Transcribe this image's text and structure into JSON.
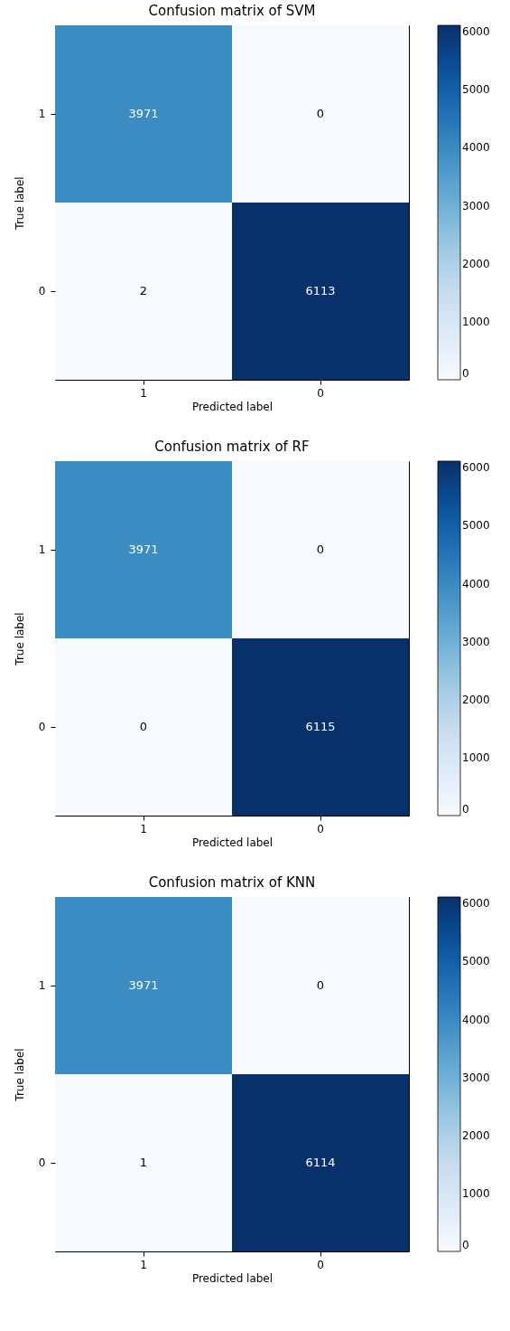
{
  "chart_data": [
    {
      "type": "heatmap",
      "title": "Confusion matrix of SVM",
      "xlabel": "Predicted label",
      "ylabel": "True label",
      "categories": [
        "1",
        "0"
      ],
      "y_categories": [
        "1",
        "0"
      ],
      "cells": [
        [
          3971,
          0
        ],
        [
          2,
          6113
        ]
      ],
      "clim": [
        0,
        6113
      ],
      "cticks": [
        0,
        1000,
        2000,
        3000,
        4000,
        5000,
        6000
      ],
      "data_labels": true
    },
    {
      "type": "heatmap",
      "title": "Confusion matrix of RF",
      "xlabel": "Predicted label",
      "ylabel": "True label",
      "categories": [
        "1",
        "0"
      ],
      "y_categories": [
        "1",
        "0"
      ],
      "cells": [
        [
          3971,
          0
        ],
        [
          0,
          6115
        ]
      ],
      "clim": [
        0,
        6115
      ],
      "cticks": [
        0,
        1000,
        2000,
        3000,
        4000,
        5000,
        6000
      ],
      "data_labels": true
    },
    {
      "type": "heatmap",
      "title": "Confusion matrix of KNN",
      "xlabel": "Predicted label",
      "ylabel": "True label",
      "categories": [
        "1",
        "0"
      ],
      "y_categories": [
        "1",
        "0"
      ],
      "cells": [
        [
          3971,
          0
        ],
        [
          1,
          6114
        ]
      ],
      "clim": [
        0,
        6114
      ],
      "cticks": [
        0,
        1000,
        2000,
        3000,
        4000,
        5000,
        6000
      ],
      "data_labels": true
    }
  ]
}
